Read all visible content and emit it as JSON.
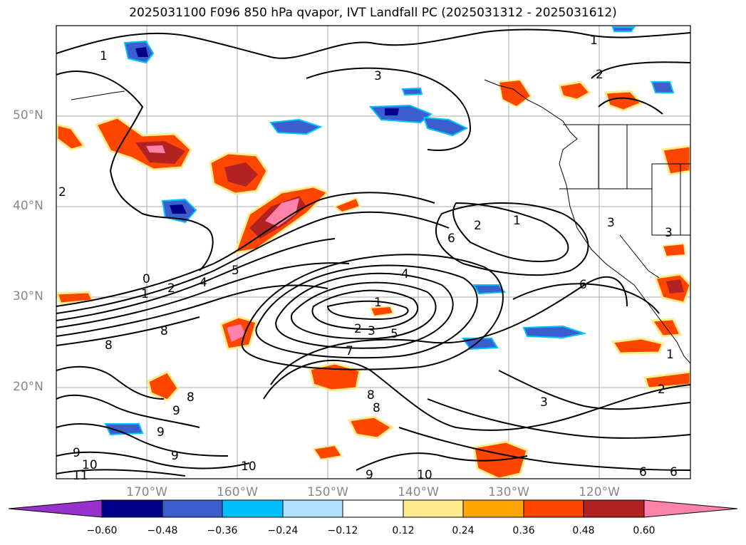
{
  "title": "2025031100 F096 850 hPa qvapor, IVT Landfall PC (2025031312 - 2025031612)",
  "lat_labels": [
    "50°N",
    "40°N",
    "30°N",
    "20°N"
  ],
  "lon_labels": [
    "170°W",
    "160°W",
    "150°W",
    "140°W",
    "130°W",
    "120°W"
  ],
  "colorbar": {
    "ticks": [
      "−0.60",
      "−0.48",
      "−0.36",
      "−0.24",
      "−0.12",
      "0.12",
      "0.24",
      "0.36",
      "0.48",
      "0.60"
    ],
    "colors": [
      "#9932cc",
      "#00008b",
      "#3a5fcd",
      "#00bfff",
      "#b0e2ff",
      "#ffffff",
      "#ffeb8c",
      "#ffa500",
      "#ff4500",
      "#b22222",
      "#ff82ab"
    ]
  },
  "contour_labels": [
    "1",
    "3",
    "1",
    "2",
    "2",
    "0",
    "1",
    "2",
    "4",
    "5",
    "2",
    "1",
    "6",
    "4",
    "6",
    "1",
    "2",
    "3",
    "5",
    "7",
    "8",
    "8",
    "9",
    "8",
    "9",
    "9",
    "9",
    "10",
    "11",
    "10",
    "8",
    "8",
    "9",
    "10",
    "3",
    "2",
    "6",
    "6",
    "3",
    "3",
    "1"
  ],
  "colors": {
    "land_line": "#000000",
    "grid": "#aaaaaa"
  }
}
